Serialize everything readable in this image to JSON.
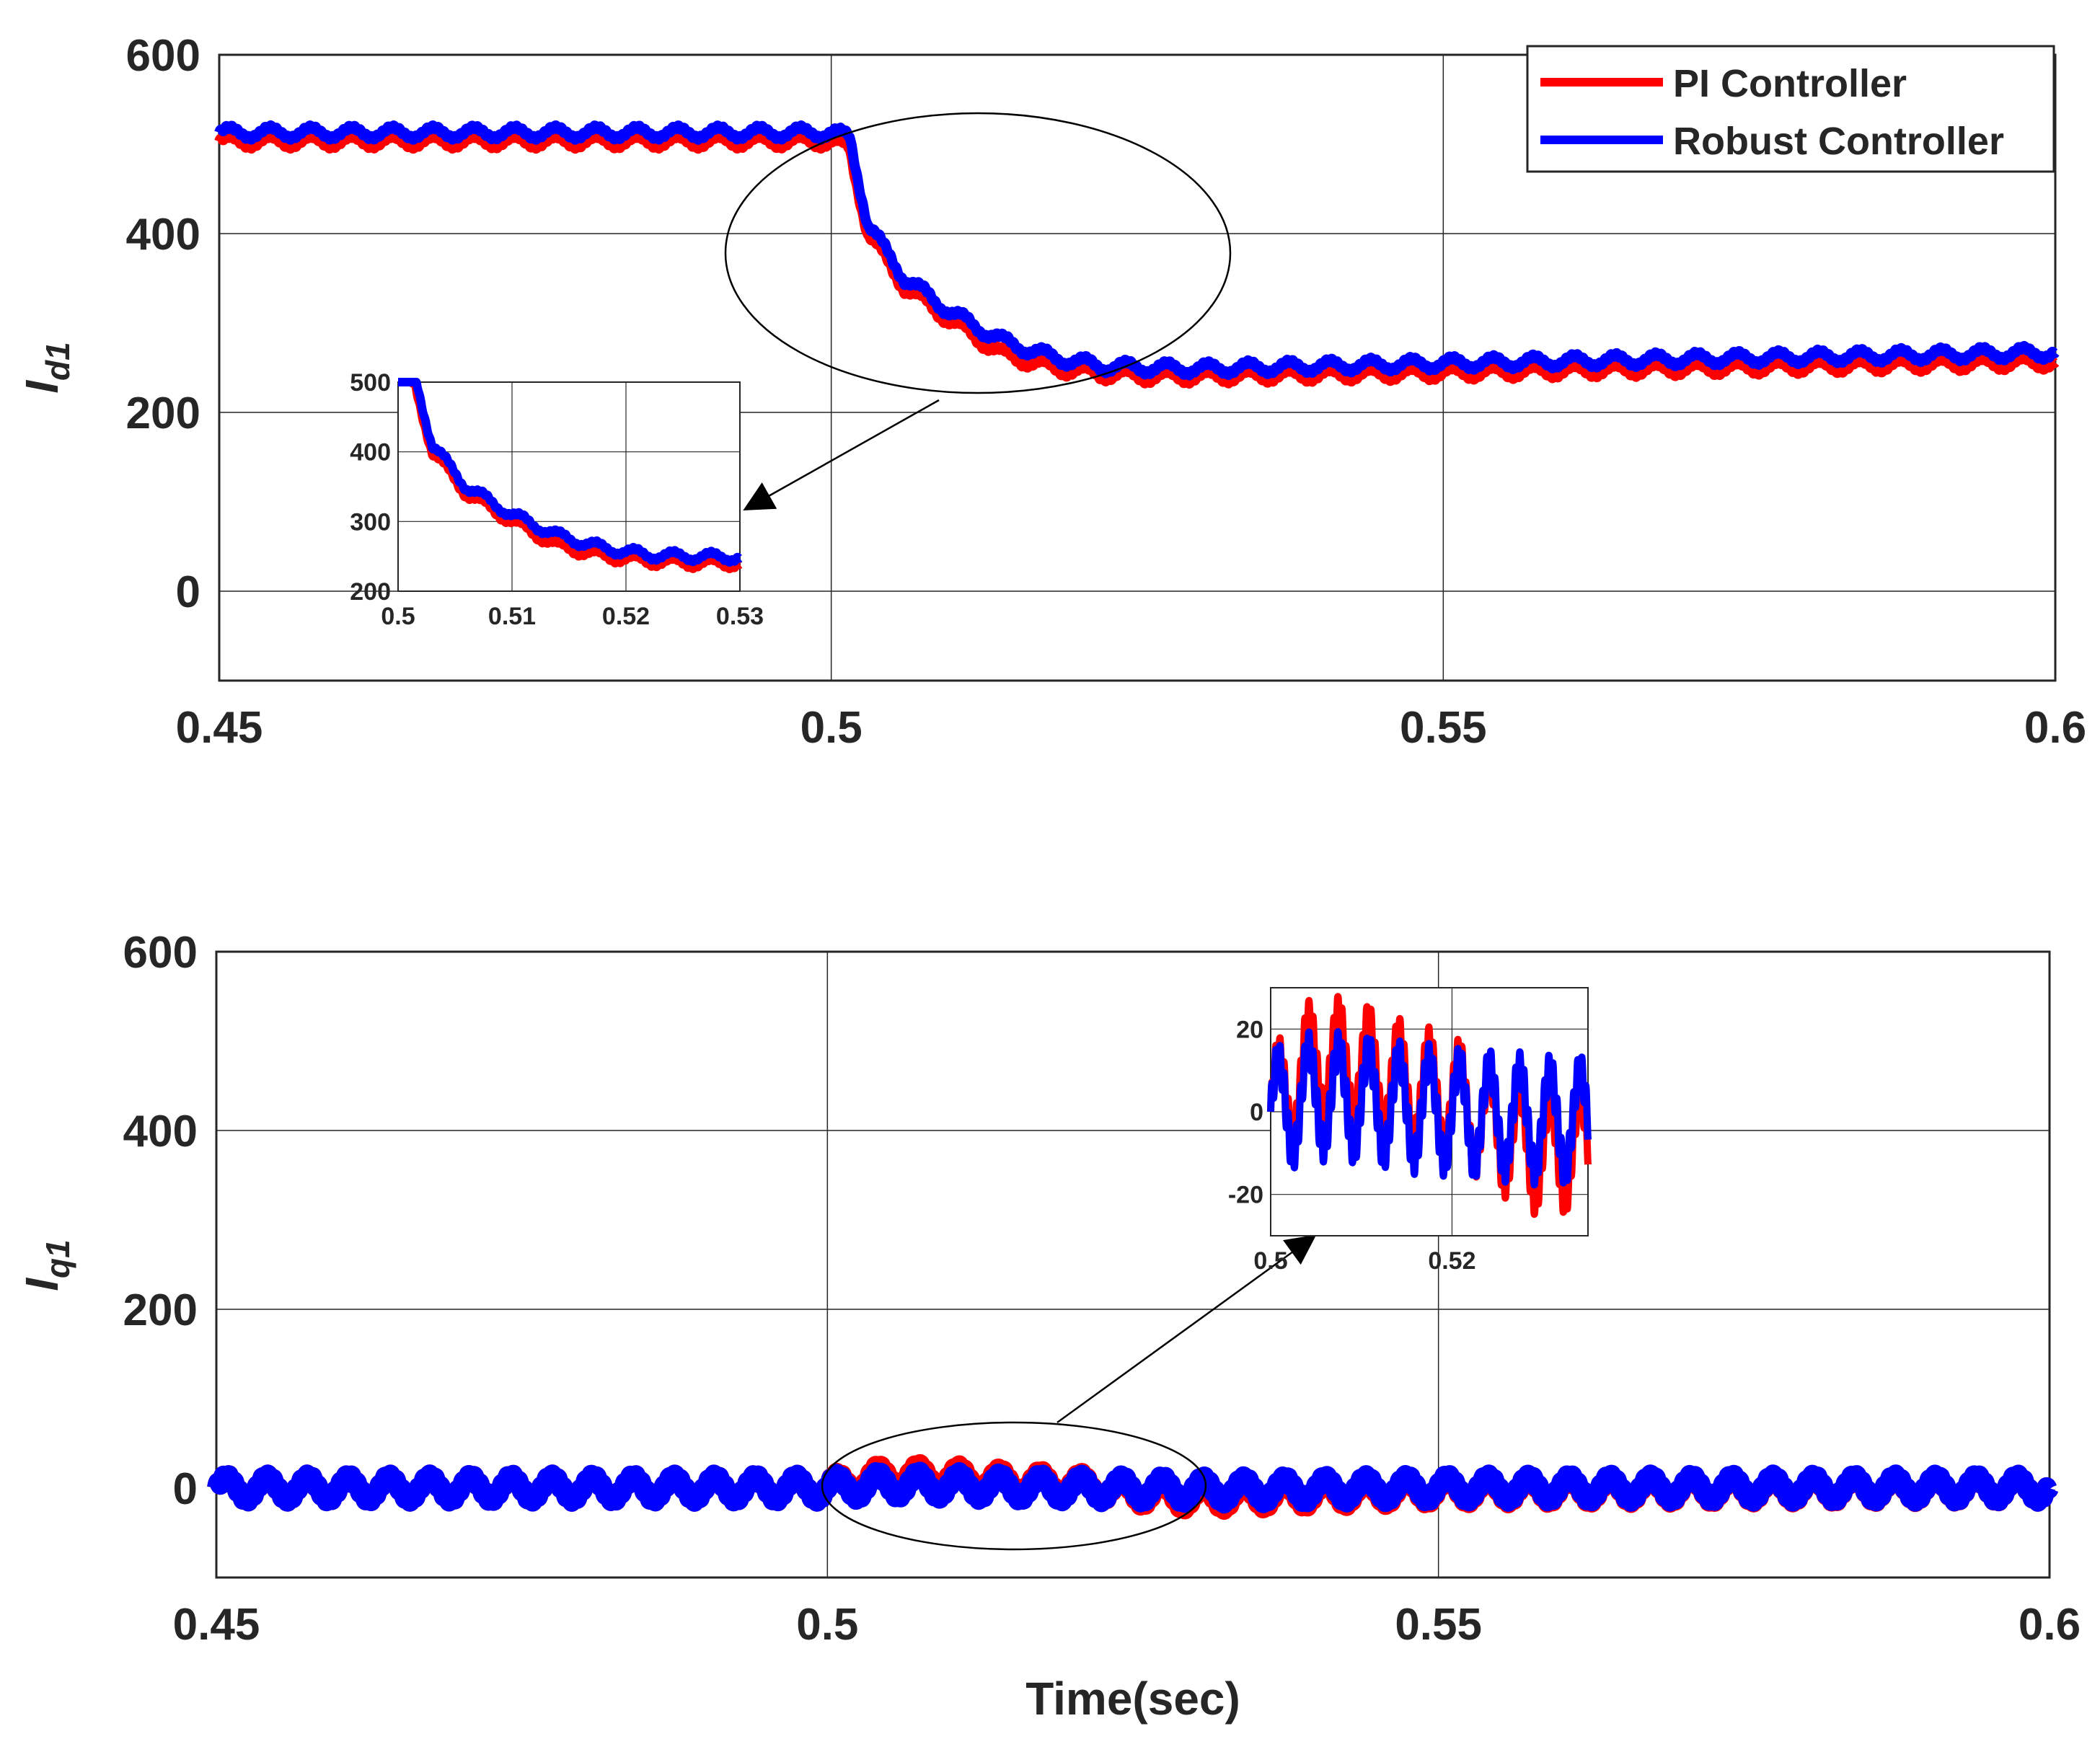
{
  "colors": {
    "pi": "#ff0000",
    "robust": "#0000ff",
    "axis": "#262626",
    "grid": "#262626"
  },
  "chart_data": [
    {
      "type": "line",
      "id": "id1",
      "title": "",
      "xlabel": "",
      "ylabel_main": "I",
      "ylabel_sub": "d1",
      "xlim": [
        0.45,
        0.6
      ],
      "ylim": [
        -100,
        600
      ],
      "xticks": [
        0.45,
        0.5,
        0.55,
        0.6
      ],
      "xtick_labels": [
        "0.45",
        "0.5",
        "0.55",
        "0.6"
      ],
      "yticks": [
        0,
        200,
        400,
        600
      ],
      "ytick_labels": [
        "0",
        "200",
        "400",
        "600"
      ],
      "grid": true,
      "legend": {
        "placement": "top-right",
        "entries": [
          "PI Controller",
          "Robust Controller"
        ]
      },
      "series": [
        {
          "name": "PI Controller",
          "color_key": "pi",
          "x": [
            0.45,
            0.5,
            0.5015,
            0.503,
            0.506,
            0.51,
            0.514,
            0.518,
            0.522,
            0.526,
            0.53,
            0.55,
            0.6
          ],
          "values": [
            503,
            503,
            495,
            400,
            340,
            300,
            265,
            250,
            243,
            240,
            240,
            244,
            256
          ],
          "ripple": 8,
          "ripple_period": 0.00333
        },
        {
          "name": "Robust Controller",
          "color_key": "robust",
          "x": [
            0.45,
            0.5,
            0.5015,
            0.503,
            0.506,
            0.51,
            0.514,
            0.518,
            0.522,
            0.526,
            0.53,
            0.55,
            0.6
          ],
          "values": [
            513,
            513,
            508,
            410,
            350,
            310,
            280,
            262,
            252,
            250,
            249,
            255,
            267
          ],
          "ripple": 8,
          "ripple_period": 0.00333
        }
      ],
      "annotations": [
        "ellipse around transient near t=0.5-0.52, arrow to inset"
      ],
      "inset": {
        "xlim": [
          0.5,
          0.53
        ],
        "ylim": [
          200,
          500
        ],
        "xticks": [
          0.5,
          0.51,
          0.52,
          0.53
        ],
        "xtick_labels": [
          "0.5",
          "0.51",
          "0.52",
          "0.53"
        ],
        "yticks": [
          200,
          300,
          400,
          500
        ],
        "ytick_labels": [
          "200",
          "300",
          "400",
          "500"
        ]
      }
    },
    {
      "type": "line",
      "id": "iq1",
      "title": "",
      "xlabel": "Time(sec)",
      "ylabel_main": "I",
      "ylabel_sub": "q1",
      "xlim": [
        0.45,
        0.6
      ],
      "ylim": [
        -100,
        600
      ],
      "xticks": [
        0.45,
        0.5,
        0.55,
        0.6
      ],
      "xtick_labels": [
        "0.45",
        "0.5",
        "0.55",
        "0.6"
      ],
      "yticks": [
        0,
        200,
        400,
        600
      ],
      "ytick_labels": [
        "0",
        "200",
        "400",
        "600"
      ],
      "grid": true,
      "series": [
        {
          "name": "PI Controller",
          "color_key": "pi",
          "x": [
            0.45,
            0.5,
            0.505,
            0.51,
            0.515,
            0.52,
            0.525,
            0.53,
            0.535,
            0.55,
            0.6
          ],
          "values": [
            0,
            0,
            13,
            11,
            6,
            3,
            -4,
            -10,
            -8,
            -2,
            0
          ],
          "ripple": 16,
          "ripple_period": 0.00333
        },
        {
          "name": "Robust Controller",
          "color_key": "robust",
          "x": [
            0.45,
            0.5,
            0.505,
            0.51,
            0.515,
            0.52,
            0.525,
            0.53,
            0.535,
            0.55,
            0.6
          ],
          "values": [
            0,
            0,
            4,
            3,
            1,
            0,
            -1,
            -2,
            -2,
            0,
            0
          ],
          "ripple": 16,
          "ripple_period": 0.00333
        }
      ],
      "annotations": [
        "ellipse around t=0.5-0.53, arrow to inset"
      ],
      "inset": {
        "xlim": [
          0.5,
          0.535
        ],
        "ylim": [
          -30,
          30
        ],
        "xticks": [
          0.5,
          0.52
        ],
        "xtick_labels": [
          "0.5",
          "0.52"
        ],
        "yticks": [
          -20,
          0,
          20
        ],
        "ytick_labels": [
          "-20",
          "0",
          "20"
        ]
      }
    }
  ]
}
